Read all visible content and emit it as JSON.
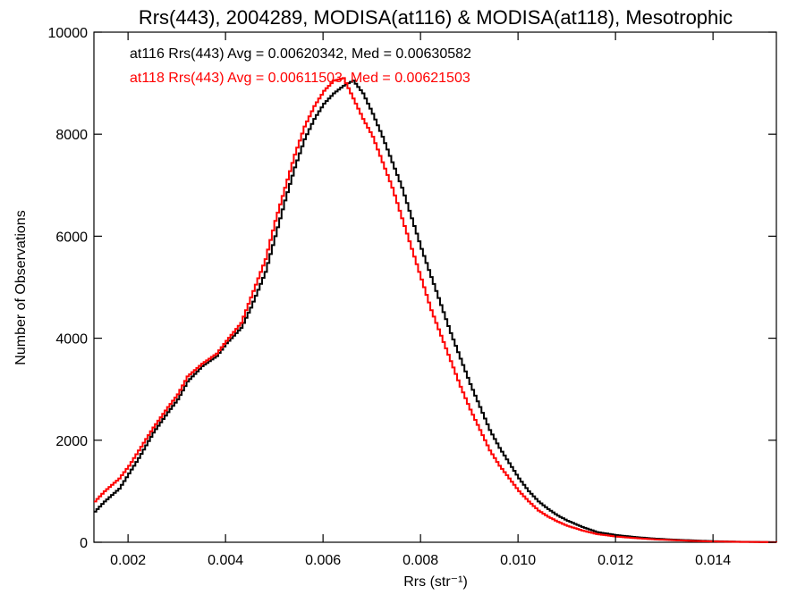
{
  "chart_data": {
    "type": "line",
    "title": "Rrs(443), 2004289, MODISA(at116) & MODISA(at118), Mesotrophic",
    "xlabel": "Rrs (str⁻¹)",
    "ylabel": "Number of Observations",
    "xlim": [
      0.0013,
      0.0153
    ],
    "ylim": [
      0,
      10000
    ],
    "xticks": [
      0.002,
      0.004,
      0.006,
      0.008,
      0.01,
      0.012,
      0.014
    ],
    "xtick_labels": [
      "0.002",
      "0.004",
      "0.006",
      "0.008",
      "0.010",
      "0.012",
      "0.014"
    ],
    "yticks": [
      0,
      2000,
      4000,
      6000,
      8000,
      10000
    ],
    "ytick_labels": [
      "0",
      "2000",
      "4000",
      "6000",
      "8000",
      "10000"
    ],
    "grid": false,
    "series": [
      {
        "name": "at116",
        "color": "#000000",
        "annotation": "at116 Rrs(443) Avg = 0.00620342, Med = 0.00630582",
        "x": [
          0.0013,
          0.0015,
          0.0018,
          0.002,
          0.0022,
          0.0025,
          0.0028,
          0.003,
          0.0032,
          0.0035,
          0.0038,
          0.004,
          0.0043,
          0.0045,
          0.0048,
          0.005,
          0.0052,
          0.0054,
          0.0056,
          0.0058,
          0.006,
          0.0062,
          0.0064,
          0.0066,
          0.0068,
          0.007,
          0.0072,
          0.0074,
          0.0076,
          0.0078,
          0.008,
          0.0082,
          0.0084,
          0.0086,
          0.0088,
          0.009,
          0.0092,
          0.0094,
          0.0096,
          0.0098,
          0.01,
          0.0102,
          0.0104,
          0.0106,
          0.0108,
          0.011,
          0.0113,
          0.0116,
          0.012,
          0.0124,
          0.0128,
          0.0132,
          0.0136,
          0.014,
          0.0145,
          0.015,
          0.0153
        ],
        "y": [
          600,
          800,
          1050,
          1350,
          1650,
          2150,
          2550,
          2800,
          3150,
          3450,
          3650,
          3900,
          4200,
          4600,
          5300,
          6000,
          6700,
          7350,
          7900,
          8300,
          8600,
          8800,
          8950,
          9050,
          8800,
          8400,
          7950,
          7450,
          6950,
          6350,
          5750,
          5200,
          4650,
          4100,
          3600,
          3100,
          2650,
          2200,
          1850,
          1550,
          1250,
          1000,
          800,
          650,
          520,
          420,
          300,
          200,
          140,
          100,
          70,
          50,
          35,
          20,
          10,
          5,
          0
        ]
      },
      {
        "name": "at118",
        "color": "#ff0000",
        "annotation": "at118 Rrs(443) Avg = 0.00611503, Med = 0.00621503",
        "x": [
          0.0013,
          0.0015,
          0.0018,
          0.002,
          0.0022,
          0.0025,
          0.0028,
          0.003,
          0.0032,
          0.0035,
          0.0038,
          0.004,
          0.0043,
          0.0045,
          0.0048,
          0.005,
          0.0052,
          0.0054,
          0.0056,
          0.0058,
          0.006,
          0.0062,
          0.0064,
          0.0066,
          0.0068,
          0.007,
          0.0072,
          0.0074,
          0.0076,
          0.0078,
          0.008,
          0.0082,
          0.0084,
          0.0086,
          0.0088,
          0.009,
          0.0092,
          0.0094,
          0.0096,
          0.0098,
          0.01,
          0.0102,
          0.0104,
          0.0106,
          0.0108,
          0.011,
          0.0113,
          0.0116,
          0.012,
          0.0124,
          0.0128,
          0.0132,
          0.0136,
          0.014,
          0.0145,
          0.015,
          0.0153
        ],
        "y": [
          800,
          1000,
          1250,
          1500,
          1800,
          2250,
          2650,
          2900,
          3250,
          3500,
          3700,
          3950,
          4300,
          4800,
          5550,
          6300,
          6950,
          7600,
          8150,
          8550,
          8850,
          9050,
          9100,
          8700,
          8300,
          7950,
          7450,
          6950,
          6350,
          5750,
          5150,
          4550,
          4050,
          3550,
          3050,
          2600,
          2200,
          1800,
          1500,
          1250,
          1000,
          800,
          620,
          500,
          400,
          320,
          230,
          160,
          110,
          80,
          55,
          40,
          25,
          15,
          8,
          4,
          0
        ]
      }
    ]
  }
}
